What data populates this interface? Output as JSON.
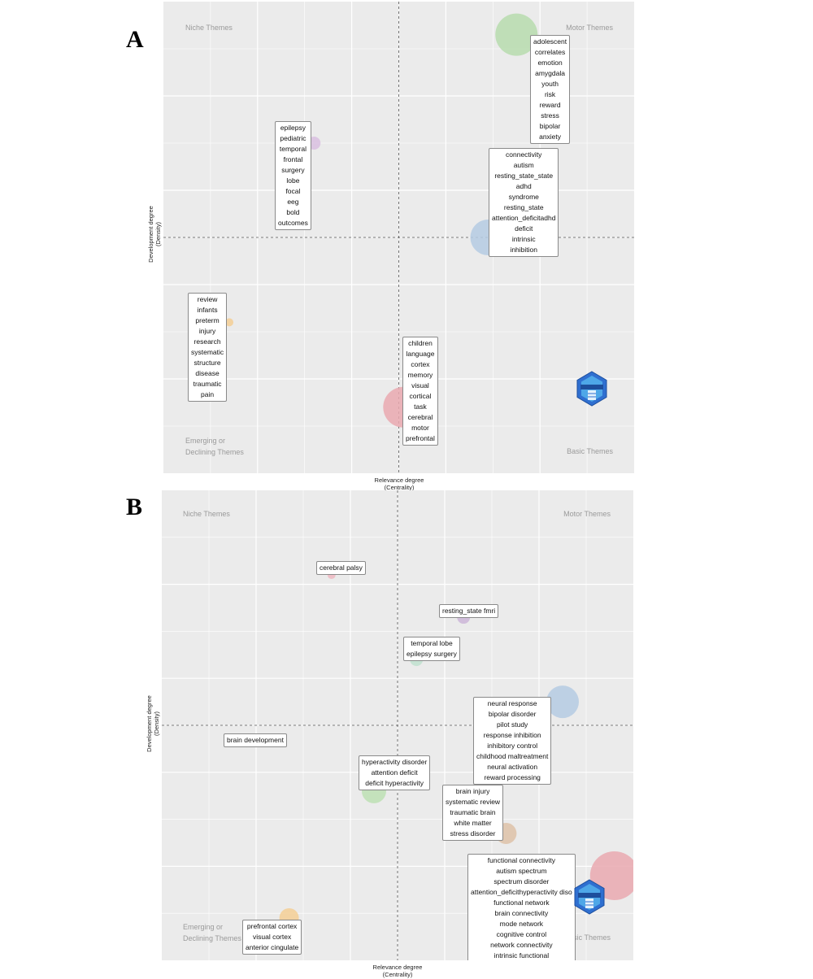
{
  "panels": [
    {
      "letter": "A",
      "quadrants": {
        "top_left": "Niche Themes",
        "top_right": "Motor Themes",
        "bottom_left_line1": "Emerging or",
        "bottom_left_line2": "Declining Themes",
        "bottom_right": "Basic Themes"
      },
      "xlabel_line1": "Relevance degree",
      "xlabel_line2": "(Centrality)",
      "ylabel_line1": "Development degree",
      "ylabel_line2": "(Density)",
      "clusters": [
        {
          "terms": [
            "adolescent",
            "correlates",
            "emotion",
            "amygdala",
            "youth",
            "risk",
            "reward",
            "stress",
            "bipolar",
            "anxiety"
          ],
          "color": "#b7dcae"
        },
        {
          "terms": [
            "epilepsy",
            "pediatric",
            "temporal",
            "frontal",
            "surgery",
            "lobe",
            "focal",
            "eeg",
            "bold",
            "outcomes"
          ],
          "color": "#d9bfe0"
        },
        {
          "terms": [
            "connectivity",
            "autism",
            "resting_state_state",
            "adhd",
            "syndrome",
            "resting_state",
            "attention_deficitadhd",
            "deficit",
            "intrinsic",
            "inhibition"
          ],
          "color": "#b5cbe3"
        },
        {
          "terms": [
            "review",
            "infants",
            "preterm",
            "injury",
            "research",
            "systematic",
            "structure",
            "disease",
            "traumatic",
            "pain"
          ],
          "color": "#f4cf95"
        },
        {
          "terms": [
            "children",
            "language",
            "cortex",
            "memory",
            "visual",
            "cortical",
            "task",
            "cerebral",
            "motor",
            "prefrontal"
          ],
          "color": "#eaa9b0"
        }
      ]
    },
    {
      "letter": "B",
      "quadrants": {
        "top_left": "Niche Themes",
        "top_right": "Motor Themes",
        "bottom_left_line1": "Emerging or",
        "bottom_left_line2": "Declining Themes",
        "bottom_right": "Basic Themes"
      },
      "xlabel_line1": "Relevance degree",
      "xlabel_line2": "(Centrality)",
      "ylabel_line1": "Development degree",
      "ylabel_line2": "(Density)",
      "clusters": [
        {
          "terms": [
            "cerebral palsy"
          ],
          "color": "#efb8c2"
        },
        {
          "terms": [
            "resting_state fmri"
          ],
          "color": "#cdb6d8"
        },
        {
          "terms": [
            "temporal lobe",
            "epilepsy surgery"
          ],
          "color": "#bfe0cf"
        },
        {
          "terms": [
            "neural response",
            "bipolar disorder",
            "pilot study",
            "response inhibition",
            "inhibitory control",
            "childhood maltreatment",
            "neural activation",
            "reward processing"
          ],
          "color": "#b5cbe3"
        },
        {
          "terms": [
            "brain development"
          ],
          "color": "#d6d6d6"
        },
        {
          "terms": [
            "hyperactivity disorder",
            "attention deficit",
            "deficit hyperactivity"
          ],
          "color": "#bde0b4"
        },
        {
          "terms": [
            "brain injury",
            "systematic review",
            "traumatic brain",
            "white matter",
            "stress disorder"
          ],
          "color": "#dec2a8"
        },
        {
          "terms": [
            "functional connectivity",
            "autism spectrum",
            "spectrum disorder",
            "attention_deficithyperactivity diso",
            "functional network",
            "brain connectivity",
            "mode network",
            "cognitive control",
            "network connectivity",
            "intrinsic functional"
          ],
          "color": "#eaa9b0"
        },
        {
          "terms": [
            "prefrontal cortex",
            "visual cortex",
            "anterior cingulate"
          ],
          "color": "#f4cf95"
        }
      ]
    }
  ],
  "chart_data": [
    {
      "type": "scatter",
      "title": "",
      "xlabel": "Relevance degree (Centrality)",
      "ylabel": "Development degree (Density)",
      "points": [
        {
          "cluster": "adolescent",
          "x": 0.75,
          "y": 0.93
        },
        {
          "cluster": "epilepsy",
          "x": 0.32,
          "y": 0.7
        },
        {
          "cluster": "connectivity",
          "x": 0.69,
          "y": 0.5
        },
        {
          "cluster": "review",
          "x": 0.14,
          "y": 0.32
        },
        {
          "cluster": "children",
          "x": 0.51,
          "y": 0.14
        }
      ],
      "quadrant_labels": [
        "Niche Themes",
        "Motor Themes",
        "Emerging or Declining Themes",
        "Basic Themes"
      ]
    },
    {
      "type": "scatter",
      "title": "",
      "xlabel": "Relevance degree (Centrality)",
      "ylabel": "Development degree (Density)",
      "points": [
        {
          "cluster": "cerebral palsy",
          "x": 0.36,
          "y": 0.82
        },
        {
          "cluster": "resting_state fmri",
          "x": 0.64,
          "y": 0.73
        },
        {
          "cluster": "temporal lobe",
          "x": 0.54,
          "y": 0.64
        },
        {
          "cluster": "neural response",
          "x": 0.85,
          "y": 0.55
        },
        {
          "cluster": "brain development",
          "x": 0.18,
          "y": 0.46
        },
        {
          "cluster": "hyperactivity disorder",
          "x": 0.45,
          "y": 0.36
        },
        {
          "cluster": "brain injury",
          "x": 0.73,
          "y": 0.27
        },
        {
          "cluster": "functional connectivity",
          "x": 0.96,
          "y": 0.18
        },
        {
          "cluster": "prefrontal cortex",
          "x": 0.27,
          "y": 0.09
        }
      ],
      "quadrant_labels": [
        "Niche Themes",
        "Motor Themes",
        "Emerging or Declining Themes",
        "Basic Themes"
      ]
    }
  ]
}
